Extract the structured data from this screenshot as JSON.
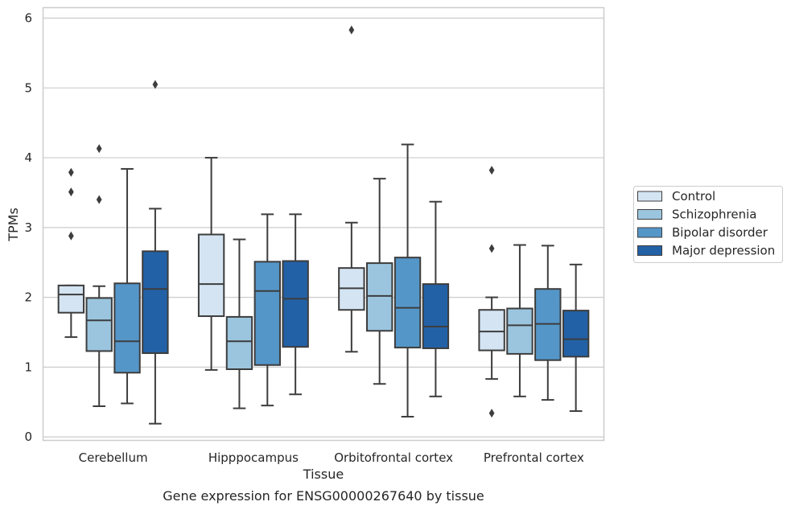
{
  "chart_data": {
    "type": "box",
    "title": "",
    "caption": "Gene expression for ENSG00000267640 by tissue",
    "xlabel": "Tissue",
    "ylabel": "TPMs",
    "ylim": [
      -0.05,
      6.15
    ],
    "yticks": [
      "0",
      "1",
      "2",
      "3",
      "4",
      "5",
      "6"
    ],
    "grid": true,
    "legend_position": "right",
    "categories": [
      "Cerebellum",
      "Hipppocampus",
      "Orbitofrontal cortex",
      "Prefrontal cortex"
    ],
    "colors": [
      "#d4e4f2",
      "#9bc5de",
      "#5596c8",
      "#2361a6"
    ],
    "edge_color": "#3d3d3d",
    "series": [
      {
        "name": "Control",
        "boxes": [
          {
            "whislo": 1.43,
            "q1": 1.78,
            "med": 2.04,
            "q3": 2.17,
            "whishi": 2.17,
            "fliers": [
              2.88,
              3.51,
              3.79
            ]
          },
          {
            "whislo": 0.96,
            "q1": 1.73,
            "med": 2.19,
            "q3": 2.9,
            "whishi": 4.0,
            "fliers": []
          },
          {
            "whislo": 1.22,
            "q1": 1.82,
            "med": 2.13,
            "q3": 2.42,
            "whishi": 3.07,
            "fliers": [
              5.83
            ]
          },
          {
            "whislo": 0.83,
            "q1": 1.24,
            "med": 1.51,
            "q3": 1.82,
            "whishi": 2.0,
            "fliers": [
              0.34,
              2.7,
              3.82
            ]
          }
        ]
      },
      {
        "name": "Schizophrenia",
        "boxes": [
          {
            "whislo": 0.44,
            "q1": 1.23,
            "med": 1.67,
            "q3": 1.99,
            "whishi": 2.16,
            "fliers": [
              3.4,
              4.13
            ]
          },
          {
            "whislo": 0.41,
            "q1": 0.97,
            "med": 1.37,
            "q3": 1.72,
            "whishi": 2.83,
            "fliers": []
          },
          {
            "whislo": 0.76,
            "q1": 1.52,
            "med": 2.02,
            "q3": 2.49,
            "whishi": 3.7,
            "fliers": []
          },
          {
            "whislo": 0.58,
            "q1": 1.19,
            "med": 1.6,
            "q3": 1.84,
            "whishi": 2.75,
            "fliers": []
          }
        ]
      },
      {
        "name": "Bipolar disorder",
        "boxes": [
          {
            "whislo": 0.48,
            "q1": 0.92,
            "med": 1.37,
            "q3": 2.2,
            "whishi": 3.84,
            "fliers": []
          },
          {
            "whislo": 0.45,
            "q1": 1.03,
            "med": 2.09,
            "q3": 2.51,
            "whishi": 3.19,
            "fliers": []
          },
          {
            "whislo": 0.29,
            "q1": 1.28,
            "med": 1.85,
            "q3": 2.57,
            "whishi": 4.19,
            "fliers": []
          },
          {
            "whislo": 0.53,
            "q1": 1.1,
            "med": 1.62,
            "q3": 2.12,
            "whishi": 2.74,
            "fliers": []
          }
        ]
      },
      {
        "name": "Major depression",
        "boxes": [
          {
            "whislo": 0.19,
            "q1": 1.2,
            "med": 2.12,
            "q3": 2.66,
            "whishi": 3.27,
            "fliers": [
              5.05
            ]
          },
          {
            "whislo": 0.61,
            "q1": 1.29,
            "med": 1.98,
            "q3": 2.52,
            "whishi": 3.19,
            "fliers": []
          },
          {
            "whislo": 0.58,
            "q1": 1.27,
            "med": 1.58,
            "q3": 2.19,
            "whishi": 3.37,
            "fliers": []
          },
          {
            "whislo": 0.37,
            "q1": 1.15,
            "med": 1.4,
            "q3": 1.81,
            "whishi": 2.47,
            "fliers": []
          }
        ]
      }
    ]
  }
}
